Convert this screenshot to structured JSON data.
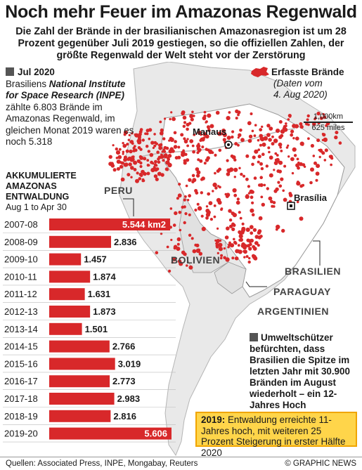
{
  "title": "Noch mehr Feuer im Amazonas Regenwald",
  "subtitle": "Die Zahl der Brände in der brasilianischen Amazonasregion ist um 28 Prozent gegenüber Juli 2019 gestiegen, so die offiziellen Zahlen, der größte Regenwald der Welt steht vor der Zerstörung",
  "infobox": {
    "heading": "Jul 2020",
    "line1": "Brasiliens",
    "agency": "National Institute for Space Research (INPE)",
    "body": "zählte 6.803 Brände im Amazonas Regenwald, im gleichen Monat 2019 waren es noch 5.318"
  },
  "legend": {
    "label": "Erfasste Brände",
    "date1": "(Daten vom",
    "date2": "4. Aug 2020)"
  },
  "scale": {
    "km": "1,000km",
    "miles": "625 miles"
  },
  "places": {
    "manaus": "Manaus",
    "brasilia": "Brasília"
  },
  "countries": {
    "peru": "PERU",
    "bolivia": "BOLIVIEN",
    "brazil": "BRASILIEN",
    "paraguay": "PARAGUAY",
    "argentina": "ARGENTINIEN"
  },
  "chart_heading": {
    "line1": "AKKUMULIERTE",
    "line2": "AMAZONAS",
    "line3": "ENTWALDUNG",
    "period": "Aug 1 to Apr 30"
  },
  "chart_data": {
    "type": "bar",
    "orientation": "horizontal",
    "categories": [
      "2007-08",
      "2008-09",
      "2009-10",
      "2010-11",
      "2011-12",
      "2012-13",
      "2013-14",
      "2014-15",
      "2015-16",
      "2016-17",
      "2017-18",
      "2018-19",
      "2019-20"
    ],
    "values": [
      5544,
      2836,
      1457,
      1874,
      1631,
      1873,
      1501,
      2766,
      3019,
      2773,
      2983,
      2816,
      5606
    ],
    "value_labels": [
      "5.544 km2",
      "2.836",
      "1.457",
      "1.874",
      "1.631",
      "1.873",
      "1.501",
      "2.766",
      "3.019",
      "2.773",
      "2.983",
      "2.816",
      "5.606"
    ],
    "bar_color": "#d8282a",
    "xlim": [
      0,
      5800
    ]
  },
  "annotation": {
    "text": "Umweltschützer befürchten, dass Brasilien die Spitze im letzten Jahr mit 30.900 Bränden im August wiederholt – ein 12-Jahres Hoch"
  },
  "highlight": {
    "year": "2019:",
    "text": "Entwaldung erreichte 11-Jahres hoch, mit weiteren 25 Prozent Steigerung in erster Hälfte 2020"
  },
  "footer": {
    "sources": "Quellen: Associated Press, INPE, Mongabay, Reuters",
    "copyright": "© GRAPHIC NEWS"
  },
  "colors": {
    "fire": "#d8282a",
    "land": "#ededed",
    "brazil": "#ffffff",
    "sea": "#ffffff",
    "highlight": "#ffd54a"
  }
}
